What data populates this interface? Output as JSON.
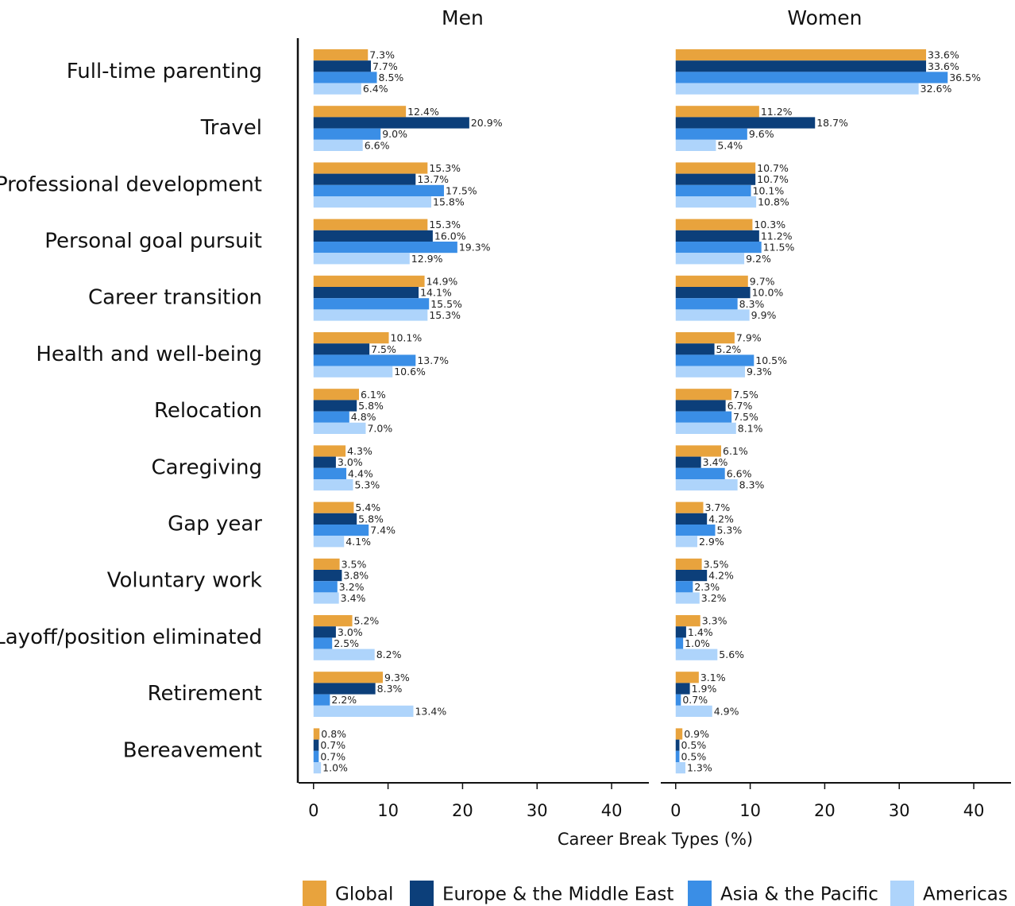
{
  "chart_data": [
    {
      "type": "bar",
      "title": "Men",
      "xlabel": "Career Break Types (%)",
      "categories": [
        "Full-time parenting",
        "Travel",
        "Professional development",
        "Personal goal pursuit",
        "Career transition",
        "Health and well-being",
        "Relocation",
        "Caregiving",
        "Gap year",
        "Voluntary work",
        "Layoff/position eliminated",
        "Retirement",
        "Bereavement"
      ],
      "xlim": [
        -2,
        45
      ],
      "xticks": [
        0,
        10,
        20,
        30,
        40
      ],
      "series": [
        {
          "name": "Global",
          "color": "#e8a33d",
          "values": [
            7.3,
            12.4,
            15.3,
            15.3,
            14.9,
            10.1,
            6.1,
            4.3,
            5.4,
            3.5,
            5.2,
            9.3,
            0.8
          ],
          "value_labels": [
            "7.3%",
            "12.4%",
            "15.3%",
            "15.3%",
            "14.9%",
            "10.1%",
            "6.1%",
            "4.3%",
            "5.4%",
            "3.5%",
            "5.2%",
            "9.3%",
            "0.8%"
          ]
        },
        {
          "name": "Europe & the Middle East",
          "color": "#0c3f7a",
          "values": [
            7.7,
            20.9,
            13.7,
            16.0,
            14.1,
            7.5,
            5.8,
            3.0,
            5.8,
            3.8,
            3.0,
            8.3,
            0.7
          ],
          "value_labels": [
            "7.7%",
            "20.9%",
            "13.7%",
            "16.0%",
            "14.1%",
            "7.5%",
            "5.8%",
            "3.0%",
            "5.8%",
            "3.8%",
            "3.0%",
            "8.3%",
            "0.7%"
          ]
        },
        {
          "name": "Asia & the Pacific",
          "color": "#3a8ee6",
          "values": [
            8.5,
            9.0,
            17.5,
            19.3,
            15.5,
            13.7,
            4.8,
            4.4,
            7.4,
            3.2,
            2.5,
            2.2,
            0.7
          ],
          "value_labels": [
            "8.5%",
            "9.0%",
            "17.5%",
            "19.3%",
            "15.5%",
            "13.7%",
            "4.8%",
            "4.4%",
            "7.4%",
            "3.2%",
            "2.5%",
            "2.2%",
            "0.7%"
          ]
        },
        {
          "name": "Americas",
          "color": "#aed4fb",
          "values": [
            6.4,
            6.6,
            15.8,
            12.9,
            15.3,
            10.6,
            7.0,
            5.3,
            4.1,
            3.4,
            8.2,
            13.4,
            1.0
          ],
          "value_labels": [
            "6.4%",
            "6.6%",
            "15.8%",
            "12.9%",
            "15.3%",
            "10.6%",
            "7.0%",
            "5.3%",
            "4.1%",
            "3.4%",
            "8.2%",
            "13.4%",
            "1.0%"
          ]
        }
      ]
    },
    {
      "type": "bar",
      "title": "Women",
      "xlim": [
        -2,
        45
      ],
      "xticks": [
        0,
        10,
        20,
        30,
        40
      ],
      "series": [
        {
          "values": [
            33.6,
            11.2,
            10.7,
            10.3,
            9.7,
            7.9,
            7.5,
            6.1,
            3.7,
            3.5,
            3.3,
            3.1,
            0.9
          ],
          "value_labels": [
            "33.6%",
            "11.2%",
            "10.7%",
            "10.3%",
            "9.7%",
            "7.9%",
            "7.5%",
            "6.1%",
            "3.7%",
            "3.5%",
            "3.3%",
            "3.1%",
            "0.9%"
          ]
        },
        {
          "values": [
            33.6,
            18.7,
            10.7,
            11.2,
            10.0,
            5.2,
            6.7,
            3.4,
            4.2,
            4.2,
            1.4,
            1.9,
            0.5
          ],
          "value_labels": [
            "33.6%",
            "18.7%",
            "10.7%",
            "11.2%",
            "10.0%",
            "5.2%",
            "6.7%",
            "3.4%",
            "4.2%",
            "4.2%",
            "1.4%",
            "1.9%",
            "0.5%"
          ]
        },
        {
          "values": [
            36.5,
            9.6,
            10.1,
            11.5,
            8.3,
            10.5,
            7.5,
            6.6,
            5.3,
            2.3,
            1.0,
            0.7,
            0.5
          ],
          "value_labels": [
            "36.5%",
            "9.6%",
            "10.1%",
            "11.5%",
            "8.3%",
            "10.5%",
            "7.5%",
            "6.6%",
            "5.3%",
            "2.3%",
            "1.0%",
            "0.7%",
            "0.5%"
          ]
        },
        {
          "values": [
            32.6,
            5.4,
            10.8,
            9.2,
            9.9,
            9.3,
            8.1,
            8.3,
            2.9,
            3.2,
            5.6,
            4.9,
            1.3
          ],
          "value_labels": [
            "32.6%",
            "5.4%",
            "10.8%",
            "9.2%",
            "9.9%",
            "9.3%",
            "8.1%",
            "8.3%",
            "2.9%",
            "3.2%",
            "5.6%",
            "4.9%",
            "1.3%"
          ]
        }
      ]
    }
  ]
}
